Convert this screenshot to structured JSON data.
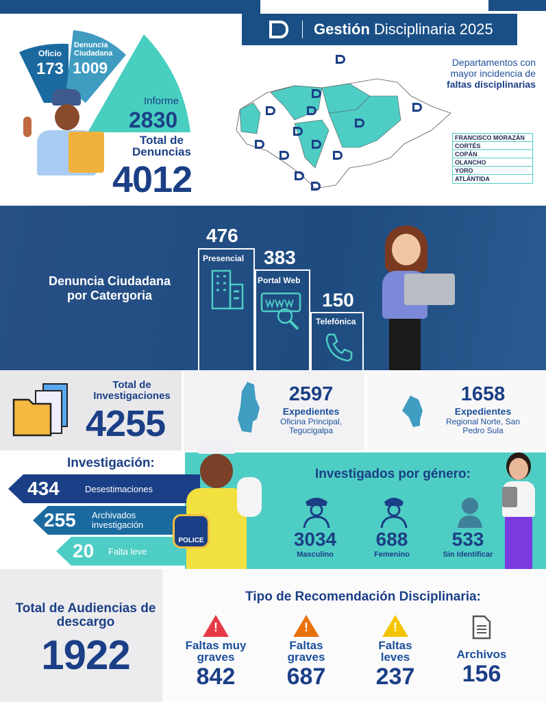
{
  "header": {
    "title_bold": "Gestión",
    "title_rest": "Disciplinaria 2025"
  },
  "denuncias": {
    "slices": [
      {
        "label": "Oficio",
        "value": "173",
        "color": "#1a6aa0"
      },
      {
        "label": "Denuncia Ciudadana",
        "value": "1009",
        "color": "#3f9cc0"
      },
      {
        "label": "Informe",
        "value": "2830",
        "color": "#48cfc0"
      }
    ],
    "total_label": "Total de Denuncias",
    "total": "4012"
  },
  "departamentos": {
    "title_line1": "Departamentos con",
    "title_line2": "mayor incidencia de",
    "title_bold": "faltas disciplinarias",
    "items": [
      "FRANCISCO MORAZÁN",
      "CORTÉS",
      "COPÁN",
      "OLANCHO",
      "YORO",
      "ATLÁNTIDA"
    ],
    "highlight_color": "#4ecdc4"
  },
  "categoria": {
    "title": "Denuncia Ciudadana por Catergoria",
    "items": [
      {
        "label": "Presencial",
        "value": "476",
        "icon": "building-icon"
      },
      {
        "label": "Portal Web",
        "value": "383",
        "icon": "web-search-icon"
      },
      {
        "label": "Telefónica",
        "value": "150",
        "icon": "phone-icon"
      }
    ]
  },
  "investigaciones": {
    "total_label": "Total de Investigaciones",
    "total": "4255",
    "tegucigalpa": {
      "value": "2597",
      "label": "Expedientes",
      "place": "Oficina Principal, Tegucigalpa"
    },
    "sps": {
      "value": "1658",
      "label": "Expedientes",
      "place": "Regional Norte, San Pedro Sula"
    }
  },
  "investigacion": {
    "title": "Investigación:",
    "items": [
      {
        "value": "434",
        "label": "Desestimaciones"
      },
      {
        "value": "255",
        "label": "Archivados investigación"
      },
      {
        "value": "20",
        "label": "Falta leve"
      }
    ],
    "badge": "POLICE"
  },
  "genero": {
    "title": "Investigados por género:",
    "items": [
      {
        "value": "3034",
        "label": "Masculino"
      },
      {
        "value": "688",
        "label": "Femenino"
      },
      {
        "value": "533",
        "label": "Sin Identificar"
      }
    ]
  },
  "audiencias": {
    "label": "Total de Audiencias de descargo",
    "value": "1922"
  },
  "recomendacion": {
    "title": "Tipo de Recomendación Disciplinaria:",
    "items": [
      {
        "label": "Faltas muy graves",
        "value": "842",
        "color": "#e63946"
      },
      {
        "label": "Faltas graves",
        "value": "687",
        "color": "#e8720c"
      },
      {
        "label": "Faltas leves",
        "value": "237",
        "color": "#f5c400"
      },
      {
        "label": "Archivos",
        "value": "156",
        "color": "#555555"
      }
    ]
  }
}
